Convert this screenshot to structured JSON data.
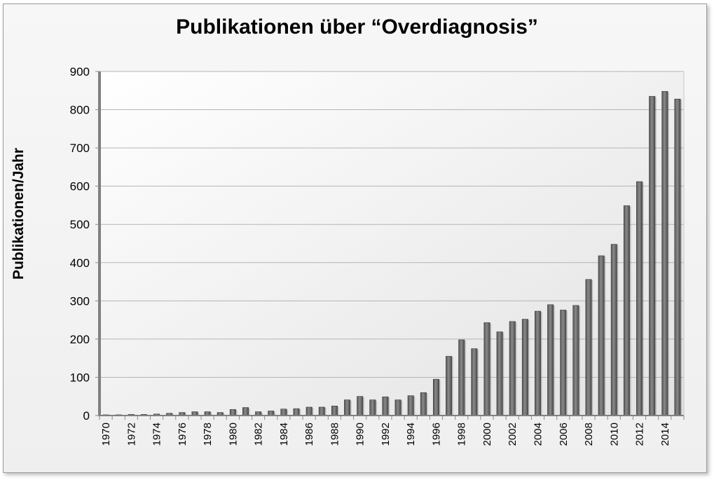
{
  "chart_data": {
    "type": "bar",
    "title": "Publikationen über “Overdiagnosis”",
    "ylabel": "Publikationen/Jahr",
    "xlabel": "",
    "ylim": [
      0,
      900
    ],
    "yticks": [
      0,
      100,
      200,
      300,
      400,
      500,
      600,
      700,
      800,
      900
    ],
    "grid": true,
    "legend": "none",
    "x": [
      1970,
      1971,
      1972,
      1973,
      1974,
      1975,
      1976,
      1977,
      1978,
      1979,
      1980,
      1981,
      1982,
      1983,
      1984,
      1985,
      1986,
      1987,
      1988,
      1989,
      1990,
      1991,
      1992,
      1993,
      1994,
      1995,
      1996,
      1997,
      1998,
      1999,
      2000,
      2001,
      2002,
      2003,
      2004,
      2005,
      2006,
      2007,
      2008,
      2009,
      2010,
      2011,
      2012,
      2013,
      2014,
      2015
    ],
    "xtick_labels": [
      "1970",
      "1972",
      "1974",
      "1976",
      "1978",
      "1980",
      "1982",
      "1984",
      "1986",
      "1988",
      "1990",
      "1992",
      "1994",
      "1996",
      "1998",
      "2000",
      "2002",
      "2004",
      "2006",
      "2008",
      "2010",
      "2012",
      "2014"
    ],
    "values": [
      2,
      2,
      3,
      3,
      4,
      6,
      8,
      10,
      10,
      8,
      16,
      21,
      10,
      12,
      17,
      18,
      22,
      22,
      25,
      41,
      50,
      41,
      49,
      41,
      52,
      60,
      95,
      155,
      198,
      175,
      243,
      219,
      246,
      252,
      273,
      290,
      276,
      288,
      356,
      418,
      448,
      549,
      612,
      835,
      848,
      828
    ],
    "bar_color": "#6b6b6b"
  }
}
